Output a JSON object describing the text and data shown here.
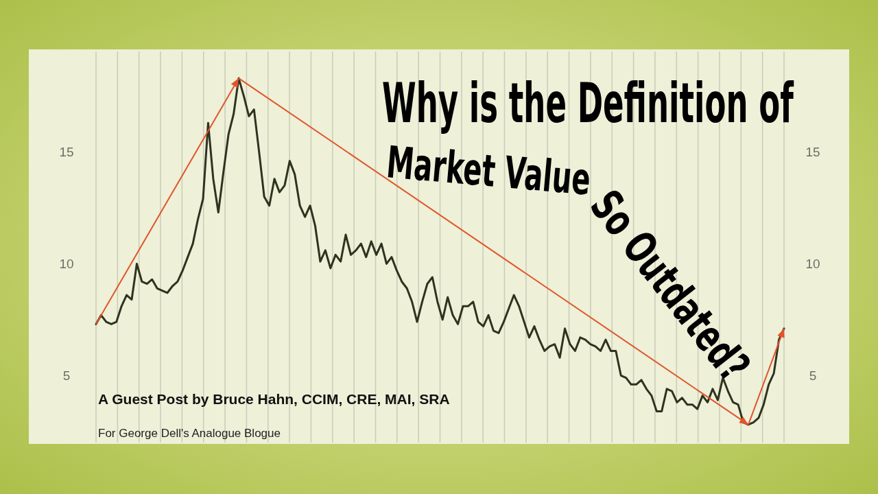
{
  "chart_data": {
    "type": "line",
    "title": "Why is the Definition of",
    "annotations": [
      "Market Value",
      "So Outdated?",
      "A Guest Post by Bruce Hahn, CCIM, CRE, MAI, SRA",
      "For George Dell's Analogue Blogue"
    ],
    "categories": [
      null,
      null,
      null,
      null,
      null,
      null,
      null,
      null,
      null,
      null,
      null,
      null,
      null,
      null,
      null,
      null,
      null,
      null,
      null,
      null,
      null,
      null,
      null,
      null,
      null,
      null,
      null,
      null,
      null,
      null,
      null,
      null,
      null,
      null,
      null,
      null,
      null,
      null,
      null,
      null,
      null,
      null,
      null,
      null,
      null,
      null,
      null,
      null,
      null,
      null,
      null,
      null,
      null,
      null,
      null,
      null,
      null,
      null,
      null,
      null,
      null,
      null,
      null,
      null,
      null,
      null,
      null,
      null,
      null,
      null,
      null,
      null,
      null,
      null,
      null,
      null,
      null,
      null,
      null,
      null,
      null,
      null,
      null,
      null,
      null,
      null,
      null,
      null,
      null,
      null,
      null,
      null,
      null,
      null,
      null,
      null,
      null,
      null,
      null,
      null,
      null,
      null,
      null,
      null,
      null,
      null,
      null,
      null,
      null,
      null,
      null,
      null,
      null,
      null,
      null,
      null,
      null,
      null,
      null,
      null,
      null,
      null,
      null,
      null,
      null,
      null,
      null,
      null,
      null,
      null,
      null,
      null,
      null,
      null,
      null,
      null
    ],
    "series": [
      {
        "color": "#2e3320",
        "values": [
          7.3,
          7.7,
          7.4,
          7.3,
          7.4,
          8.1,
          8.6,
          8.4,
          10.0,
          9.2,
          9.1,
          9.3,
          8.9,
          8.8,
          8.7,
          9.0,
          9.2,
          9.7,
          10.3,
          10.9,
          12.0,
          12.9,
          16.3,
          13.8,
          12.3,
          14.1,
          15.8,
          16.7,
          18.3,
          17.5,
          16.6,
          16.9,
          15.0,
          13.0,
          12.6,
          13.8,
          13.2,
          13.5,
          14.6,
          14.0,
          12.6,
          12.1,
          12.6,
          11.7,
          10.1,
          10.6,
          9.8,
          10.4,
          10.1,
          11.3,
          10.4,
          10.6,
          10.9,
          10.3,
          11.0,
          10.4,
          10.9,
          10.0,
          10.3,
          9.7,
          9.2,
          8.9,
          8.3,
          7.4,
          8.3,
          9.1,
          9.4,
          8.3,
          7.5,
          8.5,
          7.7,
          7.3,
          8.1,
          8.1,
          8.3,
          7.4,
          7.2,
          7.7,
          7.0,
          6.9,
          7.4,
          8.0,
          8.6,
          8.1,
          7.4,
          6.7,
          7.2,
          6.6,
          6.1,
          6.3,
          6.4,
          5.8,
          7.1,
          6.4,
          6.1,
          6.7,
          6.6,
          6.4,
          6.3,
          6.1,
          6.6,
          6.1,
          6.1,
          5.0,
          4.9,
          4.6,
          4.6,
          4.8,
          4.4,
          4.1,
          3.4,
          3.4,
          4.4,
          4.3,
          3.8,
          4.0,
          3.7,
          3.7,
          3.5,
          4.1,
          3.8,
          4.4,
          3.9,
          4.9,
          4.3,
          3.8,
          3.7,
          2.9,
          2.8,
          2.9,
          3.1,
          3.7,
          4.6,
          5.1,
          6.6,
          7.1
        ]
      }
    ],
    "ylim": [
      2,
      19.5
    ],
    "yticks": [
      5,
      10,
      15
    ],
    "y2lim": [
      2,
      19.5
    ],
    "y2ticks": [
      5,
      10,
      15
    ],
    "tick_labels": "y",
    "grid": "x",
    "marker": "none",
    "line_style": "solid"
  }
}
